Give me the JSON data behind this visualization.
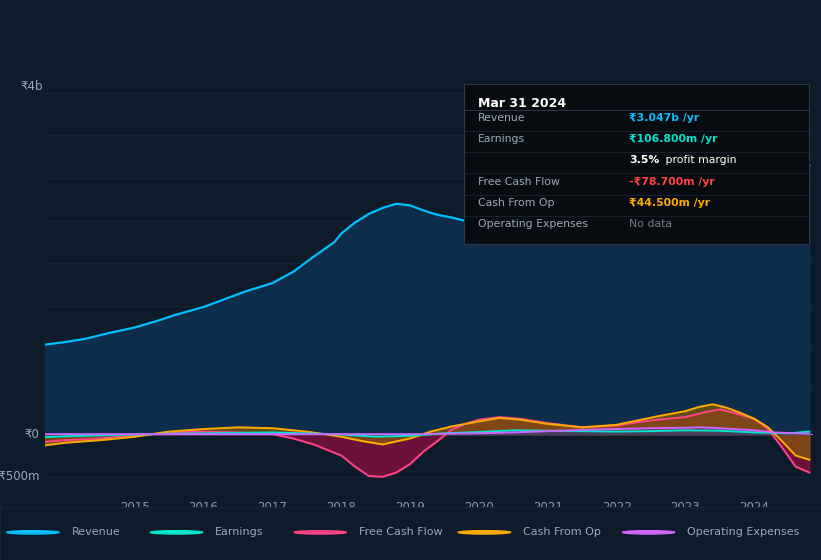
{
  "bg_color": "#0d1b2a",
  "plot_bg_color": "#0d1b2a",
  "grid_color": "#1e3048",
  "zero_line_color": "#8899aa",
  "ylabel_4b": "₹4b",
  "ylabel_0": "₹0",
  "ylabel_neg500m": "-₹500m",
  "xmin": 2013.7,
  "xmax": 2024.85,
  "ymin": -720,
  "ymax": 4300,
  "revenue_color": "#00bfff",
  "revenue_fill": "#0d2d4a",
  "earnings_color": "#00e5cc",
  "fcf_color": "#ff4488",
  "cashfromop_color": "#ffaa00",
  "opex_color": "#cc66ff",
  "legend_labels": [
    "Revenue",
    "Earnings",
    "Free Cash Flow",
    "Cash From Op",
    "Operating Expenses"
  ],
  "info_box_title": "Mar 31 2024",
  "info_rows": [
    {
      "label": "Revenue",
      "value": "₹3.047b /yr",
      "vcolor": "#00bfff",
      "bold": true
    },
    {
      "label": "Earnings",
      "value": "₹106.800m /yr",
      "vcolor": "#00e5cc",
      "bold": true
    },
    {
      "label": "",
      "value": "3.5% profit margin",
      "vcolor": "#ffffff",
      "bold": false,
      "bold_prefix": "3.5%"
    },
    {
      "label": "Free Cash Flow",
      "value": "-₹78.700m /yr",
      "vcolor": "#ff4444",
      "bold": true
    },
    {
      "label": "Cash From Op",
      "value": "₹44.500m /yr",
      "vcolor": "#ffaa00",
      "bold": true
    },
    {
      "label": "Operating Expenses",
      "value": "No data",
      "vcolor": "#777788",
      "bold": false
    }
  ],
  "revenue_x": [
    2013.7,
    2014.0,
    2014.3,
    2014.6,
    2015.0,
    2015.3,
    2015.6,
    2016.0,
    2016.3,
    2016.6,
    2017.0,
    2017.3,
    2017.6,
    2017.9,
    2018.0,
    2018.2,
    2018.4,
    2018.6,
    2018.8,
    2019.0,
    2019.2,
    2019.4,
    2019.6,
    2019.8,
    2020.0,
    2020.2,
    2020.4,
    2020.6,
    2020.8,
    2021.0,
    2021.2,
    2021.4,
    2021.6,
    2021.8,
    2022.0,
    2022.2,
    2022.4,
    2022.6,
    2022.8,
    2023.0,
    2023.2,
    2023.4,
    2023.6,
    2023.8,
    2024.0,
    2024.2,
    2024.4,
    2024.6,
    2024.8
  ],
  "revenue_y": [
    1050,
    1080,
    1120,
    1180,
    1250,
    1320,
    1400,
    1490,
    1580,
    1670,
    1770,
    1900,
    2080,
    2250,
    2350,
    2480,
    2580,
    2650,
    2700,
    2680,
    2620,
    2570,
    2540,
    2500,
    2460,
    2420,
    2390,
    2400,
    2380,
    2360,
    2340,
    2380,
    2440,
    2500,
    2580,
    2640,
    2680,
    2700,
    2750,
    2820,
    2950,
    3080,
    3180,
    3200,
    3050,
    2850,
    2950,
    3100,
    3150
  ],
  "earnings_x": [
    2013.7,
    2014.0,
    2014.5,
    2015.0,
    2015.5,
    2016.0,
    2016.5,
    2017.0,
    2017.5,
    2018.0,
    2018.5,
    2019.0,
    2019.5,
    2020.0,
    2020.5,
    2021.0,
    2021.5,
    2022.0,
    2022.5,
    2023.0,
    2023.5,
    2024.0,
    2024.5,
    2024.8
  ],
  "earnings_y": [
    -35,
    -25,
    -15,
    -5,
    5,
    10,
    15,
    20,
    10,
    -5,
    -30,
    -20,
    10,
    25,
    45,
    40,
    35,
    30,
    35,
    45,
    40,
    20,
    10,
    30
  ],
  "fcf_x": [
    2013.7,
    2014.0,
    2014.5,
    2015.0,
    2015.5,
    2016.0,
    2016.5,
    2017.0,
    2017.3,
    2017.6,
    2018.0,
    2018.2,
    2018.4,
    2018.6,
    2018.8,
    2019.0,
    2019.2,
    2019.4,
    2019.6,
    2019.8,
    2020.0,
    2020.3,
    2020.6,
    2021.0,
    2021.5,
    2022.0,
    2022.3,
    2022.6,
    2023.0,
    2023.3,
    2023.5,
    2023.7,
    2024.0,
    2024.2,
    2024.4,
    2024.6,
    2024.8
  ],
  "fcf_y": [
    -90,
    -70,
    -50,
    -20,
    20,
    30,
    20,
    0,
    -50,
    -120,
    -250,
    -380,
    -490,
    -500,
    -450,
    -350,
    -200,
    -80,
    50,
    120,
    170,
    200,
    180,
    130,
    80,
    100,
    140,
    170,
    200,
    260,
    290,
    250,
    180,
    60,
    -150,
    -380,
    -450
  ],
  "cashfromop_x": [
    2013.7,
    2014.0,
    2014.5,
    2015.0,
    2015.5,
    2016.0,
    2016.5,
    2017.0,
    2017.5,
    2018.0,
    2018.3,
    2018.6,
    2019.0,
    2019.3,
    2019.6,
    2020.0,
    2020.3,
    2020.6,
    2021.0,
    2021.5,
    2022.0,
    2022.3,
    2022.6,
    2023.0,
    2023.2,
    2023.4,
    2023.6,
    2023.8,
    2024.0,
    2024.2,
    2024.4,
    2024.6,
    2024.8
  ],
  "cashfromop_y": [
    -130,
    -100,
    -70,
    -30,
    30,
    60,
    80,
    70,
    30,
    -30,
    -80,
    -120,
    -50,
    30,
    90,
    150,
    190,
    170,
    120,
    80,
    110,
    160,
    210,
    270,
    320,
    350,
    310,
    250,
    180,
    80,
    -80,
    -250,
    -300
  ],
  "opex_x": [
    2013.7,
    2015.0,
    2016.0,
    2017.0,
    2018.0,
    2019.0,
    2019.5,
    2020.0,
    2020.5,
    2021.0,
    2021.5,
    2022.0,
    2022.5,
    2023.0,
    2023.2,
    2023.4,
    2023.6,
    2023.8,
    2024.0,
    2024.3,
    2024.6,
    2024.8
  ],
  "opex_y": [
    0,
    0,
    0,
    0,
    0,
    0,
    5,
    10,
    20,
    35,
    50,
    60,
    70,
    75,
    80,
    75,
    65,
    55,
    45,
    20,
    10,
    5
  ]
}
